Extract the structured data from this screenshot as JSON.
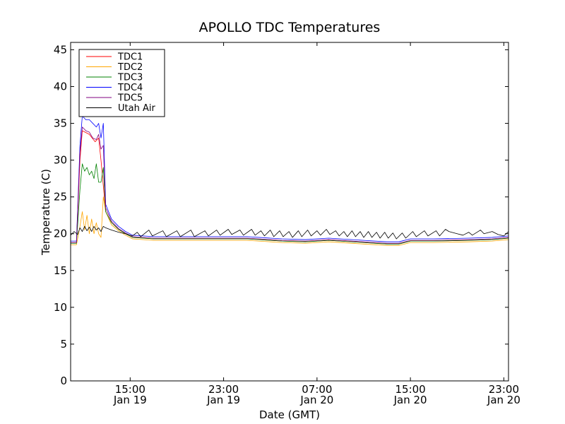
{
  "chart_data": {
    "type": "line",
    "title": "APOLLO TDC Temperatures",
    "xlabel": "Date (GMT)",
    "ylabel": "Temperature (C)",
    "ylim": [
      0,
      46
    ],
    "xlim": [
      9.9,
      47.4
    ],
    "x_unit": "hours since Jan 19 00:00 GMT",
    "yticks": [
      0,
      5,
      10,
      15,
      20,
      25,
      30,
      35,
      40,
      45
    ],
    "xticks": [
      {
        "value": 15,
        "time": "15:00",
        "date": "Jan 19"
      },
      {
        "value": 23,
        "time": "23:00",
        "date": "Jan 19"
      },
      {
        "value": 31,
        "time": "07:00",
        "date": "Jan 20"
      },
      {
        "value": 39,
        "time": "15:00",
        "date": "Jan 20"
      },
      {
        "value": 47,
        "time": "23:00",
        "date": "Jan 20"
      }
    ],
    "legend_position": "top-left",
    "series": [
      {
        "name": "TDC1",
        "color": "#ff0000",
        "points": [
          [
            9.9,
            18.8
          ],
          [
            10.4,
            18.8
          ],
          [
            10.7,
            30
          ],
          [
            10.9,
            34
          ],
          [
            11.5,
            33.5
          ],
          [
            12.0,
            32.5
          ],
          [
            12.3,
            33
          ],
          [
            12.5,
            30
          ],
          [
            12.9,
            23
          ],
          [
            13.4,
            21.5
          ],
          [
            14.0,
            20.6
          ],
          [
            14.6,
            20.0
          ],
          [
            15.2,
            19.5
          ],
          [
            17,
            19.3
          ],
          [
            20,
            19.3
          ],
          [
            25,
            19.3
          ],
          [
            28,
            19.0
          ],
          [
            30,
            18.9
          ],
          [
            32,
            19.1
          ],
          [
            35,
            18.8
          ],
          [
            37,
            18.6
          ],
          [
            38,
            18.6
          ],
          [
            39,
            19.0
          ],
          [
            41,
            19.0
          ],
          [
            44,
            19.1
          ],
          [
            46,
            19.2
          ],
          [
            47.4,
            19.4
          ]
        ]
      },
      {
        "name": "TDC2",
        "color": "#ffa500",
        "points": [
          [
            9.9,
            18.5
          ],
          [
            10.4,
            18.5
          ],
          [
            10.7,
            21
          ],
          [
            10.9,
            23
          ],
          [
            11.1,
            20.5
          ],
          [
            11.3,
            22.5
          ],
          [
            11.5,
            20
          ],
          [
            11.7,
            22
          ],
          [
            11.9,
            20
          ],
          [
            12.1,
            21.5
          ],
          [
            12.3,
            20
          ],
          [
            12.5,
            19.5
          ],
          [
            12.7,
            25
          ],
          [
            12.9,
            23
          ],
          [
            13.4,
            21.2
          ],
          [
            14.0,
            20.4
          ],
          [
            14.6,
            19.8
          ],
          [
            15.2,
            19.3
          ],
          [
            17,
            19.1
          ],
          [
            20,
            19.1
          ],
          [
            25,
            19.1
          ],
          [
            28,
            18.8
          ],
          [
            30,
            18.7
          ],
          [
            32,
            18.9
          ],
          [
            35,
            18.6
          ],
          [
            37,
            18.4
          ],
          [
            38,
            18.4
          ],
          [
            39,
            18.8
          ],
          [
            41,
            18.8
          ],
          [
            44,
            18.9
          ],
          [
            46,
            19.0
          ],
          [
            47.4,
            19.2
          ]
        ]
      },
      {
        "name": "TDC3",
        "color": "#008000",
        "points": [
          [
            9.9,
            18.7
          ],
          [
            10.4,
            18.7
          ],
          [
            10.7,
            26
          ],
          [
            10.9,
            29.5
          ],
          [
            11.1,
            28.5
          ],
          [
            11.3,
            29
          ],
          [
            11.5,
            28
          ],
          [
            11.7,
            28.5
          ],
          [
            11.9,
            27.5
          ],
          [
            12.1,
            29.5
          ],
          [
            12.3,
            27
          ],
          [
            12.5,
            27
          ],
          [
            12.7,
            29
          ],
          [
            12.9,
            23
          ],
          [
            13.4,
            21.5
          ],
          [
            14.0,
            20.6
          ],
          [
            14.6,
            20.0
          ],
          [
            15.2,
            19.5
          ],
          [
            17,
            19.3
          ],
          [
            20,
            19.3
          ],
          [
            25,
            19.3
          ],
          [
            28,
            19.0
          ],
          [
            30,
            18.9
          ],
          [
            32,
            19.1
          ],
          [
            35,
            18.8
          ],
          [
            37,
            18.6
          ],
          [
            38,
            18.6
          ],
          [
            39,
            19.0
          ],
          [
            41,
            19.0
          ],
          [
            44,
            19.1
          ],
          [
            46,
            19.2
          ],
          [
            47.4,
            19.4
          ]
        ]
      },
      {
        "name": "TDC4",
        "color": "#0000ff",
        "points": [
          [
            9.9,
            19.0
          ],
          [
            10.4,
            19.0
          ],
          [
            10.7,
            32
          ],
          [
            10.9,
            36
          ],
          [
            11.2,
            35.5
          ],
          [
            11.5,
            35.5
          ],
          [
            11.8,
            35
          ],
          [
            12.1,
            34.5
          ],
          [
            12.3,
            35
          ],
          [
            12.5,
            33
          ],
          [
            12.7,
            35
          ],
          [
            12.9,
            24
          ],
          [
            13.4,
            22
          ],
          [
            14.0,
            21.0
          ],
          [
            14.6,
            20.3
          ],
          [
            15.2,
            19.8
          ],
          [
            17,
            19.6
          ],
          [
            20,
            19.6
          ],
          [
            25,
            19.6
          ],
          [
            28,
            19.3
          ],
          [
            30,
            19.2
          ],
          [
            32,
            19.4
          ],
          [
            35,
            19.1
          ],
          [
            37,
            18.9
          ],
          [
            38,
            18.9
          ],
          [
            39,
            19.3
          ],
          [
            41,
            19.3
          ],
          [
            44,
            19.4
          ],
          [
            46,
            19.5
          ],
          [
            47.4,
            19.7
          ]
        ]
      },
      {
        "name": "TDC5",
        "color": "#800080",
        "points": [
          [
            9.9,
            18.8
          ],
          [
            10.4,
            18.8
          ],
          [
            10.7,
            31
          ],
          [
            10.9,
            34.5
          ],
          [
            11.2,
            34
          ],
          [
            11.5,
            33.8
          ],
          [
            11.8,
            33
          ],
          [
            12.1,
            32.8
          ],
          [
            12.3,
            33.5
          ],
          [
            12.5,
            31.5
          ],
          [
            12.7,
            32
          ],
          [
            12.9,
            23.5
          ],
          [
            13.4,
            21.7
          ],
          [
            14.0,
            20.7
          ],
          [
            14.6,
            20.1
          ],
          [
            15.2,
            19.6
          ],
          [
            17,
            19.4
          ],
          [
            20,
            19.4
          ],
          [
            25,
            19.4
          ],
          [
            28,
            19.1
          ],
          [
            30,
            19.0
          ],
          [
            32,
            19.2
          ],
          [
            35,
            18.9
          ],
          [
            37,
            18.7
          ],
          [
            38,
            18.7
          ],
          [
            39,
            19.1
          ],
          [
            41,
            19.1
          ],
          [
            44,
            19.2
          ],
          [
            46,
            19.3
          ],
          [
            47.4,
            19.5
          ]
        ]
      },
      {
        "name": "Utah Air",
        "color": "#000000",
        "points": [
          [
            9.9,
            19.8
          ],
          [
            10.2,
            20.3
          ],
          [
            10.5,
            19.9
          ],
          [
            10.7,
            20.8
          ],
          [
            10.9,
            20.3
          ],
          [
            11.1,
            21
          ],
          [
            11.3,
            20.4
          ],
          [
            11.5,
            20.9
          ],
          [
            11.7,
            20.3
          ],
          [
            11.9,
            21
          ],
          [
            12.1,
            20.5
          ],
          [
            12.3,
            20.8
          ],
          [
            12.5,
            20.3
          ],
          [
            12.7,
            21
          ],
          [
            12.9,
            20.8
          ],
          [
            13.4,
            20.5
          ],
          [
            14.0,
            20.2
          ],
          [
            14.6,
            20.0
          ],
          [
            15.2,
            19.7
          ],
          [
            15.6,
            20.2
          ],
          [
            15.9,
            19.6
          ],
          [
            16.6,
            20.5
          ],
          [
            16.9,
            19.7
          ],
          [
            17.8,
            20.4
          ],
          [
            18.1,
            19.6
          ],
          [
            19.0,
            20.4
          ],
          [
            19.3,
            19.6
          ],
          [
            20.2,
            20.5
          ],
          [
            20.5,
            19.6
          ],
          [
            21.4,
            20.4
          ],
          [
            21.7,
            19.7
          ],
          [
            22.4,
            20.5
          ],
          [
            22.7,
            19.8
          ],
          [
            23.4,
            20.6
          ],
          [
            23.7,
            19.9
          ],
          [
            24.4,
            20.5
          ],
          [
            24.7,
            19.8
          ],
          [
            25.4,
            20.6
          ],
          [
            25.7,
            19.8
          ],
          [
            26.2,
            20.4
          ],
          [
            26.5,
            19.7
          ],
          [
            27.0,
            20.5
          ],
          [
            27.3,
            19.6
          ],
          [
            27.8,
            20.4
          ],
          [
            28.1,
            19.6
          ],
          [
            28.6,
            20.3
          ],
          [
            28.9,
            19.5
          ],
          [
            29.4,
            20.4
          ],
          [
            29.7,
            19.6
          ],
          [
            30.2,
            20.5
          ],
          [
            30.5,
            19.7
          ],
          [
            31.0,
            20.4
          ],
          [
            31.3,
            19.8
          ],
          [
            31.8,
            20.6
          ],
          [
            32.1,
            19.9
          ],
          [
            32.6,
            20.4
          ],
          [
            32.9,
            19.7
          ],
          [
            33.3,
            20.3
          ],
          [
            33.6,
            19.6
          ],
          [
            34.0,
            20.4
          ],
          [
            34.3,
            19.6
          ],
          [
            34.7,
            20.3
          ],
          [
            35.0,
            19.5
          ],
          [
            35.4,
            20.3
          ],
          [
            35.7,
            19.5
          ],
          [
            36.1,
            20.2
          ],
          [
            36.4,
            19.4
          ],
          [
            36.8,
            20.2
          ],
          [
            37.1,
            19.4
          ],
          [
            37.5,
            20.1
          ],
          [
            37.8,
            19.3
          ],
          [
            38.3,
            20.1
          ],
          [
            38.6,
            19.4
          ],
          [
            39.2,
            20.3
          ],
          [
            39.5,
            19.6
          ],
          [
            40.2,
            20.4
          ],
          [
            40.5,
            19.7
          ],
          [
            41.2,
            20.4
          ],
          [
            41.5,
            19.7
          ],
          [
            42.0,
            20.6
          ],
          [
            42.3,
            20.3
          ],
          [
            43.0,
            20.0
          ],
          [
            43.5,
            19.8
          ],
          [
            44.0,
            20.2
          ],
          [
            44.3,
            19.8
          ],
          [
            45.0,
            20.5
          ],
          [
            45.3,
            20.0
          ],
          [
            46.0,
            20.3
          ],
          [
            46.5,
            19.9
          ],
          [
            47.0,
            19.7
          ],
          [
            47.4,
            20.3
          ]
        ]
      }
    ]
  }
}
